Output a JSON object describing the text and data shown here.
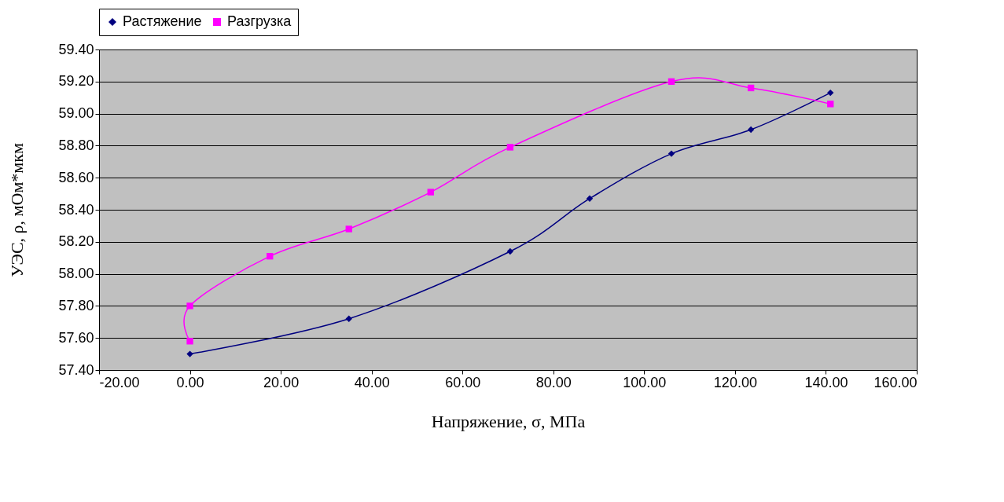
{
  "chart_data": {
    "type": "line",
    "xlabel": "Напряжение, σ, МПа",
    "ylabel": "УЭС, ρ, мОм*мкм",
    "series": [
      {
        "name": "Растяжение",
        "color": "#000080",
        "marker": "diamond",
        "x": [
          0,
          35,
          70.5,
          88,
          106,
          123.5,
          141
        ],
        "values": [
          57.5,
          57.72,
          58.14,
          58.47,
          58.75,
          58.9,
          59.13
        ]
      },
      {
        "name": "Разгрузка",
        "color": "#ff00ff",
        "marker": "square",
        "x": [
          141,
          123.5,
          106,
          70.5,
          53,
          35,
          17.6,
          0,
          0
        ],
        "values": [
          59.06,
          59.16,
          59.2,
          58.79,
          58.51,
          58.28,
          58.11,
          57.8,
          57.58
        ]
      }
    ],
    "xlim": [
      -20,
      160
    ],
    "ylim": [
      57.4,
      59.4
    ],
    "xticks": [
      {
        "value": -20,
        "label": "-20.00"
      },
      {
        "value": 0,
        "label": "0.00"
      },
      {
        "value": 20,
        "label": "20.00"
      },
      {
        "value": 40,
        "label": "40.00"
      },
      {
        "value": 60,
        "label": "60.00"
      },
      {
        "value": 80,
        "label": "80.00"
      },
      {
        "value": 100,
        "label": "100.00"
      },
      {
        "value": 120,
        "label": "120.00"
      },
      {
        "value": 140,
        "label": "140.00"
      },
      {
        "value": 160,
        "label": "160.00"
      }
    ],
    "yticks": [
      {
        "value": 57.4,
        "label": "57.40"
      },
      {
        "value": 57.6,
        "label": "57.60"
      },
      {
        "value": 57.8,
        "label": "57.80"
      },
      {
        "value": 58.0,
        "label": "58.00"
      },
      {
        "value": 58.2,
        "label": "58.20"
      },
      {
        "value": 58.4,
        "label": "58.40"
      },
      {
        "value": 58.6,
        "label": "58.60"
      },
      {
        "value": 58.8,
        "label": "58.80"
      },
      {
        "value": 59.0,
        "label": "59.00"
      },
      {
        "value": 59.2,
        "label": "59.20"
      },
      {
        "value": 59.4,
        "label": "59.40"
      }
    ],
    "grid": "y",
    "legend": "top",
    "line_style": "solid"
  }
}
